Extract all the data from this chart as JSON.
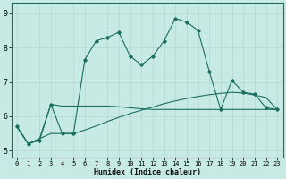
{
  "xlabel": "Humidex (Indice chaleur)",
  "bg_color": "#c8eae4",
  "line_color": "#1a6e62",
  "grid_color": "#b8ddd7",
  "xlim": [
    -0.5,
    23.5
  ],
  "ylim": [
    4.8,
    9.3
  ],
  "yticks": [
    5,
    6,
    7,
    8,
    9
  ],
  "xticks": [
    0,
    1,
    2,
    3,
    4,
    5,
    6,
    7,
    8,
    9,
    10,
    11,
    12,
    13,
    14,
    15,
    16,
    17,
    18,
    19,
    20,
    21,
    22,
    23
  ],
  "line1_x": [
    0,
    1,
    2,
    3,
    4,
    5,
    6,
    7,
    8,
    9,
    10,
    11,
    12,
    13,
    14,
    15,
    16,
    17,
    18,
    19,
    20,
    21,
    22,
    23
  ],
  "line1_y": [
    5.7,
    5.2,
    5.3,
    6.35,
    5.5,
    5.5,
    7.65,
    8.2,
    8.3,
    8.45,
    7.75,
    7.5,
    7.75,
    8.2,
    8.85,
    8.75,
    8.5,
    7.3,
    6.2,
    7.05,
    6.7,
    6.65,
    6.25,
    6.2
  ],
  "line2_x": [
    0,
    1,
    2,
    3,
    4,
    5,
    6,
    7,
    8,
    9,
    10,
    11,
    12,
    13,
    14,
    15,
    16,
    17,
    18,
    19,
    20,
    21,
    22,
    23
  ],
  "line2_y": [
    5.7,
    5.2,
    5.35,
    6.35,
    6.3,
    6.3,
    6.3,
    6.3,
    6.3,
    6.28,
    6.25,
    6.22,
    6.2,
    6.2,
    6.2,
    6.2,
    6.2,
    6.2,
    6.2,
    6.2,
    6.2,
    6.2,
    6.2,
    6.2
  ],
  "line3_x": [
    0,
    1,
    2,
    3,
    4,
    5,
    6,
    7,
    8,
    9,
    10,
    11,
    12,
    13,
    14,
    15,
    16,
    17,
    18,
    19,
    20,
    21,
    22,
    23
  ],
  "line3_y": [
    5.7,
    5.2,
    5.35,
    5.5,
    5.5,
    5.5,
    5.6,
    5.72,
    5.85,
    5.97,
    6.08,
    6.18,
    6.27,
    6.37,
    6.45,
    6.52,
    6.58,
    6.63,
    6.67,
    6.7,
    6.68,
    6.62,
    6.55,
    6.2
  ]
}
